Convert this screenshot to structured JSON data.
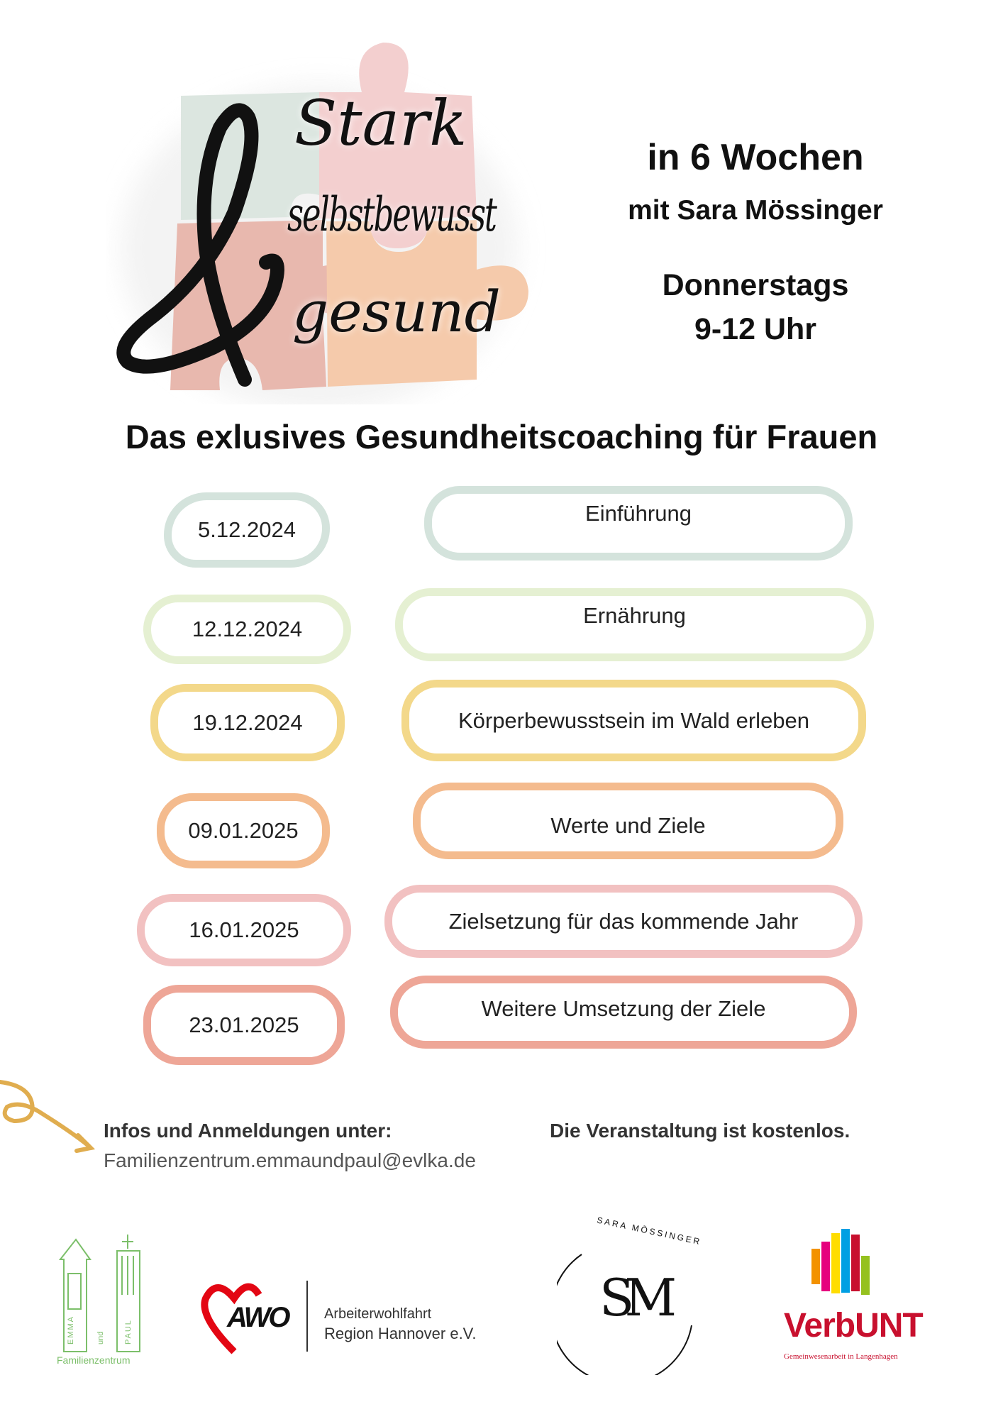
{
  "poster": {
    "logo_title": {
      "word1": "Stark",
      "word2": "selbstbewusst",
      "word3": "gesund",
      "ampersand": "&"
    },
    "duration": "in 6 Wochen",
    "coach": "mit Sara Mössinger",
    "day": "Donnerstags",
    "time": "9-12 Uhr",
    "headline": "Das exlusives Gesundheitscoaching für Frauen"
  },
  "sessions": [
    {
      "date": "5.12.2024",
      "topic": "Einführung",
      "color": "#d4e3dc"
    },
    {
      "date": "12.12.2024",
      "topic": "Ernährung",
      "color": "#e5f0d2"
    },
    {
      "date": "19.12.2024",
      "topic": "Körperbewusstsein im Wald erleben",
      "color": "#f3d88a"
    },
    {
      "date": "09.01.2025",
      "topic": "Werte und Ziele",
      "color": "#f4bb8e"
    },
    {
      "date": "16.01.2025",
      "topic": "Zielsetzung für das kommende Jahr",
      "color": "#f2c1c1"
    },
    {
      "date": "23.01.2025",
      "topic": "Weitere Umsetzung der Ziele",
      "color": "#eea697"
    }
  ],
  "info": {
    "label": "Infos und Anmeldungen unter:",
    "email": "Familienzentrum.emmaundpaul@evlka.de",
    "cost_note": "Die Veranstaltung ist kostenlos.",
    "arrow_color": "#e0ad4f"
  },
  "logos": {
    "emma_paul": {
      "emma": "EMMA",
      "und": "und",
      "paul": "PAUL",
      "caption": "Familienzentrum",
      "color": "#7cbf6a"
    },
    "awo": {
      "mark": "AWO",
      "line1": "Arbeiterwohlfahrt",
      "line2": "Region Hannover e.V.",
      "color": "#e30613"
    },
    "sara": {
      "ring_text": "SARA MÖSSINGER",
      "monogram": "SM"
    },
    "verbunt": {
      "name": "VerbUNT",
      "tagline": "Gemeinwesenarbeit in Langenhagen",
      "color": "#c8102e"
    }
  }
}
